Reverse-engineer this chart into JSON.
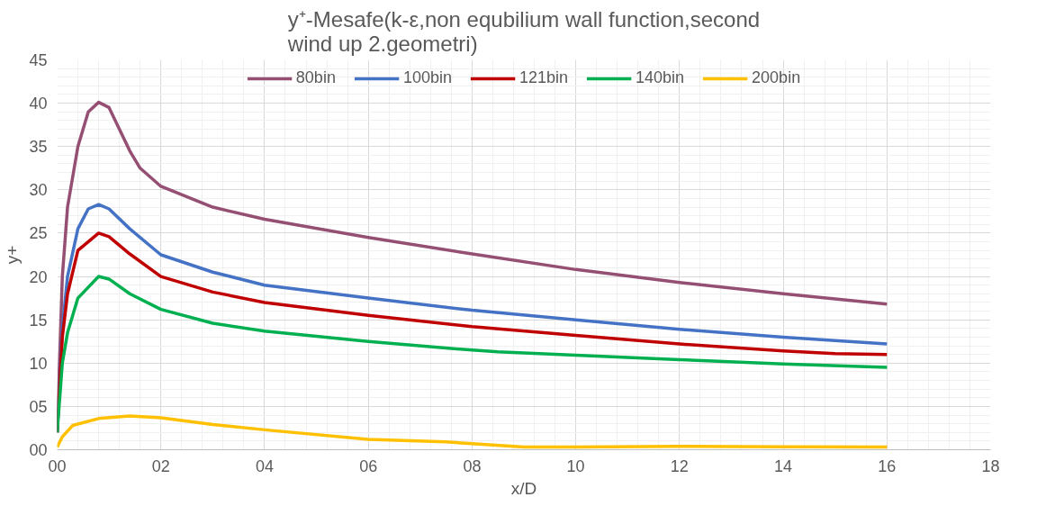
{
  "chart_data": {
    "type": "line",
    "title": "y⁺-Mesafe(k-ε,non equbilium wall function,second wind up 2.geometri)",
    "xlabel": "x/D",
    "ylabel": "y+",
    "xlim": [
      0,
      18
    ],
    "ylim": [
      0,
      45
    ],
    "xticks": [
      {
        "value": 0,
        "label": "00"
      },
      {
        "value": 2,
        "label": "02"
      },
      {
        "value": 4,
        "label": "04"
      },
      {
        "value": 6,
        "label": "06"
      },
      {
        "value": 8,
        "label": "08"
      },
      10,
      12,
      14,
      16,
      18
    ],
    "yticks": [
      {
        "value": 0,
        "label": "00"
      },
      {
        "value": 5,
        "label": "05"
      },
      10,
      15,
      20,
      25,
      30,
      35,
      40,
      45
    ],
    "grid": true,
    "legend": "top",
    "marker": "none",
    "line_style": "solid",
    "series": [
      {
        "name": "80bin",
        "color": "#954f72",
        "x": [
          0,
          0.1,
          0.2,
          0.4,
          0.6,
          0.8,
          1.0,
          1.2,
          1.4,
          1.6,
          2,
          3,
          4,
          6,
          8,
          10,
          12,
          14,
          15,
          16
        ],
        "values": [
          2,
          20,
          28,
          35,
          39,
          40.1,
          39.5,
          37,
          34.5,
          32.5,
          30.4,
          28,
          26.6,
          24.5,
          22.6,
          20.8,
          19.3,
          18,
          17.4,
          16.8
        ]
      },
      {
        "name": "100bin",
        "color": "#4472c4",
        "x": [
          0,
          0.1,
          0.2,
          0.4,
          0.6,
          0.8,
          1,
          1.4,
          2,
          3,
          4,
          6,
          8,
          10,
          12,
          14,
          16
        ],
        "values": [
          2,
          14,
          20,
          25.5,
          27.8,
          28.3,
          27.8,
          25.5,
          22.5,
          20.5,
          19,
          17.5,
          16.1,
          15,
          13.9,
          13,
          12.2
        ]
      },
      {
        "name": "121bin",
        "color": "#c00000",
        "x": [
          0,
          0.1,
          0.2,
          0.4,
          0.8,
          1,
          1.4,
          2,
          3,
          4,
          6,
          8,
          10,
          12,
          14,
          15,
          16
        ],
        "values": [
          2,
          13,
          18,
          23,
          25,
          24.6,
          22.6,
          20,
          18.2,
          17,
          15.5,
          14.2,
          13.2,
          12.2,
          11.4,
          11.1,
          11
        ]
      },
      {
        "name": "140bin",
        "color": "#00b050",
        "x": [
          0,
          0.1,
          0.2,
          0.4,
          0.8,
          1,
          1.4,
          2,
          3,
          4,
          6,
          8,
          8.5,
          10,
          12,
          14,
          16
        ],
        "values": [
          2,
          10,
          13.5,
          17.5,
          20,
          19.7,
          18,
          16.2,
          14.6,
          13.7,
          12.5,
          11.5,
          11.3,
          10.9,
          10.4,
          9.9,
          9.5
        ]
      },
      {
        "name": "200bin",
        "color": "#ffc000",
        "x": [
          0,
          0.1,
          0.3,
          0.8,
          1.4,
          2,
          3,
          4,
          6,
          7.5,
          8,
          9,
          10,
          12,
          14,
          16
        ],
        "values": [
          0.3,
          1.5,
          2.8,
          3.6,
          3.9,
          3.7,
          2.9,
          2.3,
          1.2,
          0.9,
          0.7,
          0.3,
          0.3,
          0.4,
          0.35,
          0.3
        ]
      }
    ]
  }
}
